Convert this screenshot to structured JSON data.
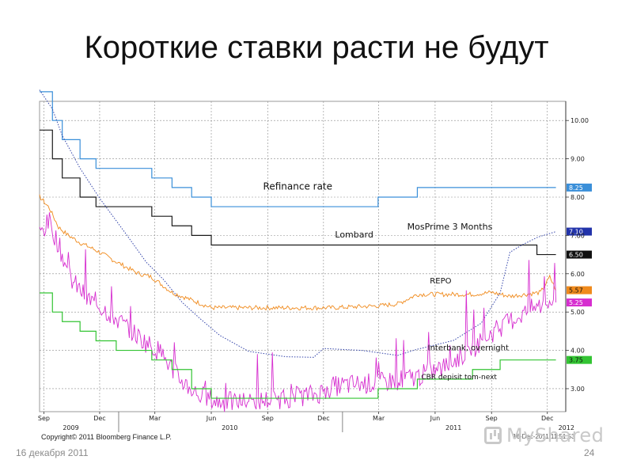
{
  "slide": {
    "title": "Короткие ставки расти не будут",
    "date": "16 декабря 2011",
    "page_number": "24",
    "copyright": "Copyright© 2011 Bloomberg Finance L.P.",
    "stamp": "16-Dec-2011 11:51:53",
    "brand": "MyShared"
  },
  "chart_data": {
    "type": "line",
    "title": "",
    "xlabel": "",
    "ylabel": "",
    "x_range": [
      "2009-08-25",
      "2011-12-31"
    ],
    "ylim": [
      2.4,
      10.5
    ],
    "y_ticks": [
      "10.00",
      "9.00",
      "8.00",
      "7.00",
      "6.00",
      "5.00",
      "4.00",
      "3.00"
    ],
    "month_ticks": [
      {
        "date": "2009-09-01",
        "label": "Sep"
      },
      {
        "date": "2009-12-01",
        "label": "Dec"
      },
      {
        "date": "2010-03-01",
        "label": "Mar"
      },
      {
        "date": "2010-06-01",
        "label": "Jun"
      },
      {
        "date": "2010-09-01",
        "label": "Sep"
      },
      {
        "date": "2010-12-01",
        "label": "Dec"
      },
      {
        "date": "2011-03-01",
        "label": "Mar"
      },
      {
        "date": "2011-06-01",
        "label": "Jun"
      },
      {
        "date": "2011-09-01",
        "label": "Sep"
      },
      {
        "date": "2011-12-01",
        "label": "Dec"
      }
    ],
    "year_labels": [
      {
        "date": "2009-10-15",
        "label": "2009"
      },
      {
        "date": "2010-07-01",
        "label": "2010"
      },
      {
        "date": "2011-07-01",
        "label": "2011"
      },
      {
        "date": "2012-01-01",
        "label": "2012"
      }
    ],
    "grid": true,
    "series": [
      {
        "name": "Refinance rate",
        "color": "#3a8fd9",
        "style": "step",
        "last_value_label": "8.25",
        "points": [
          [
            "2009-08-25",
            10.75
          ],
          [
            "2009-09-15",
            10.0
          ],
          [
            "2009-10-01",
            9.5
          ],
          [
            "2009-10-30",
            9.0
          ],
          [
            "2009-11-25",
            8.75
          ],
          [
            "2009-12-28",
            8.75
          ],
          [
            "2010-02-24",
            8.5
          ],
          [
            "2010-03-29",
            8.25
          ],
          [
            "2010-04-30",
            8.0
          ],
          [
            "2010-06-01",
            7.75
          ],
          [
            "2011-02-28",
            8.0
          ],
          [
            "2011-05-03",
            8.25
          ],
          [
            "2011-12-15",
            8.25
          ]
        ]
      },
      {
        "name": "Lombard",
        "color": "#1a1a1a",
        "style": "step",
        "last_value_label": "6.50",
        "points": [
          [
            "2009-08-25",
            9.75
          ],
          [
            "2009-09-15",
            9.0
          ],
          [
            "2009-10-01",
            8.5
          ],
          [
            "2009-10-30",
            8.0
          ],
          [
            "2009-11-25",
            7.75
          ],
          [
            "2010-02-24",
            7.5
          ],
          [
            "2010-03-29",
            7.25
          ],
          [
            "2010-04-30",
            7.0
          ],
          [
            "2010-06-01",
            6.75
          ],
          [
            "2011-09-15",
            6.75
          ],
          [
            "2011-11-14",
            6.5
          ],
          [
            "2011-12-15",
            6.5
          ]
        ]
      },
      {
        "name": "MosPrime 3 Months",
        "color": "#3344aa",
        "style": "dotted",
        "last_value_label": "7.10",
        "points": [
          [
            "2009-08-25",
            10.8
          ],
          [
            "2009-09-15",
            10.3
          ],
          [
            "2009-10-01",
            9.6
          ],
          [
            "2009-10-30",
            8.8
          ],
          [
            "2009-12-01",
            8.0
          ],
          [
            "2010-01-15",
            7.0
          ],
          [
            "2010-02-15",
            6.3
          ],
          [
            "2010-03-15",
            5.9
          ],
          [
            "2010-04-15",
            5.2
          ],
          [
            "2010-05-15",
            4.8
          ],
          [
            "2010-06-15",
            4.4
          ],
          [
            "2010-08-01",
            4.0
          ],
          [
            "2010-10-01",
            3.8
          ],
          [
            "2010-11-15",
            3.8
          ],
          [
            "2010-12-01",
            4.1
          ],
          [
            "2011-02-01",
            4.0
          ],
          [
            "2011-04-01",
            3.9
          ],
          [
            "2011-05-01",
            4.0
          ],
          [
            "2011-07-01",
            4.3
          ],
          [
            "2011-08-15",
            4.7
          ],
          [
            "2011-09-15",
            5.5
          ],
          [
            "2011-10-01",
            6.6
          ],
          [
            "2011-10-20",
            6.8
          ],
          [
            "2011-11-15",
            6.9
          ],
          [
            "2011-12-15",
            7.1
          ]
        ]
      },
      {
        "name": "REPO",
        "color": "#f08a1c",
        "style": "noisy",
        "last_value_label": "5.57",
        "points": [
          [
            "2009-08-25",
            8.0
          ],
          [
            "2009-09-10",
            7.7
          ],
          [
            "2009-09-25",
            7.2
          ],
          [
            "2009-10-10",
            7.0
          ],
          [
            "2009-10-30",
            6.8
          ],
          [
            "2009-11-25",
            6.6
          ],
          [
            "2009-12-28",
            6.3
          ],
          [
            "2010-02-01",
            6.0
          ],
          [
            "2010-02-24",
            5.9
          ],
          [
            "2010-03-29",
            5.5
          ],
          [
            "2010-04-30",
            5.3
          ],
          [
            "2010-06-01",
            5.1
          ],
          [
            "2010-12-15",
            5.1
          ],
          [
            "2011-02-28",
            5.15
          ],
          [
            "2011-04-01",
            5.2
          ],
          [
            "2011-05-03",
            5.45
          ],
          [
            "2011-08-01",
            5.45
          ],
          [
            "2011-09-01",
            5.5
          ],
          [
            "2011-10-01",
            5.4
          ],
          [
            "2011-11-20",
            5.5
          ],
          [
            "2011-12-05",
            5.9
          ],
          [
            "2011-12-15",
            5.57
          ]
        ]
      },
      {
        "name": "Interbank, overnight",
        "color": "#d62ecf",
        "style": "noisy",
        "last_value_label": "5.25",
        "points": [
          [
            "2009-08-25",
            7.0
          ],
          [
            "2009-09-10",
            7.3
          ],
          [
            "2009-09-25",
            6.7
          ],
          [
            "2009-10-15",
            5.8
          ],
          [
            "2009-11-10",
            5.3
          ],
          [
            "2009-12-10",
            5.0
          ],
          [
            "2010-01-10",
            4.6
          ],
          [
            "2010-02-10",
            4.2
          ],
          [
            "2010-03-10",
            3.9
          ],
          [
            "2010-04-10",
            3.2
          ],
          [
            "2010-05-10",
            2.8
          ],
          [
            "2010-06-10",
            2.6
          ],
          [
            "2010-08-01",
            2.6
          ],
          [
            "2010-10-01",
            2.7
          ],
          [
            "2010-11-20",
            2.8
          ],
          [
            "2010-12-15",
            3.0
          ],
          [
            "2011-01-15",
            3.05
          ],
          [
            "2011-03-01",
            3.1
          ],
          [
            "2011-05-01",
            3.25
          ],
          [
            "2011-06-15",
            3.5
          ],
          [
            "2011-08-01",
            4.0
          ],
          [
            "2011-09-01",
            4.4
          ],
          [
            "2011-10-01",
            4.7
          ],
          [
            "2011-11-01",
            5.0
          ],
          [
            "2011-12-15",
            5.25
          ]
        ]
      },
      {
        "name": "CBR depisit tom-next",
        "color": "#33c433",
        "style": "step",
        "last_value_label": "3.75",
        "points": [
          [
            "2009-08-25",
            5.5
          ],
          [
            "2009-09-15",
            5.0
          ],
          [
            "2009-10-01",
            4.75
          ],
          [
            "2009-10-30",
            4.5
          ],
          [
            "2009-11-25",
            4.25
          ],
          [
            "2009-12-28",
            4.0
          ],
          [
            "2010-02-24",
            3.75
          ],
          [
            "2010-03-29",
            3.5
          ],
          [
            "2010-04-30",
            3.0
          ],
          [
            "2010-06-01",
            2.75
          ],
          [
            "2011-01-01",
            2.75
          ],
          [
            "2011-02-28",
            3.0
          ],
          [
            "2011-05-03",
            3.25
          ],
          [
            "2011-08-01",
            3.5
          ],
          [
            "2011-09-15",
            3.75
          ],
          [
            "2011-12-15",
            3.75
          ]
        ]
      }
    ]
  }
}
